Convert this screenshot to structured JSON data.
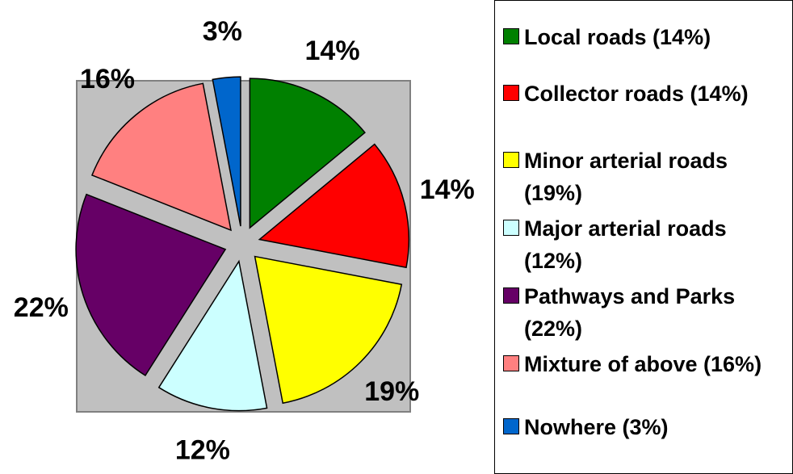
{
  "chart_data": {
    "type": "pie",
    "categories": [
      "Local roads (14%)",
      "Collector roads (14%)",
      "Minor arterial roads (19%)",
      "Major arterial roads (12%)",
      "Pathways and Parks (22%)",
      "Mixture of above (16%)",
      "Nowhere (3%)"
    ],
    "values": [
      14,
      14,
      19,
      12,
      22,
      16,
      3
    ],
    "value_labels": [
      "14%",
      "14%",
      "19%",
      "12%",
      "22%",
      "16%",
      "3%"
    ],
    "colors": [
      "#008000",
      "#ff0000",
      "#ffff00",
      "#ccffff",
      "#660066",
      "#ff8080",
      "#0066cc"
    ],
    "legend": "right"
  }
}
